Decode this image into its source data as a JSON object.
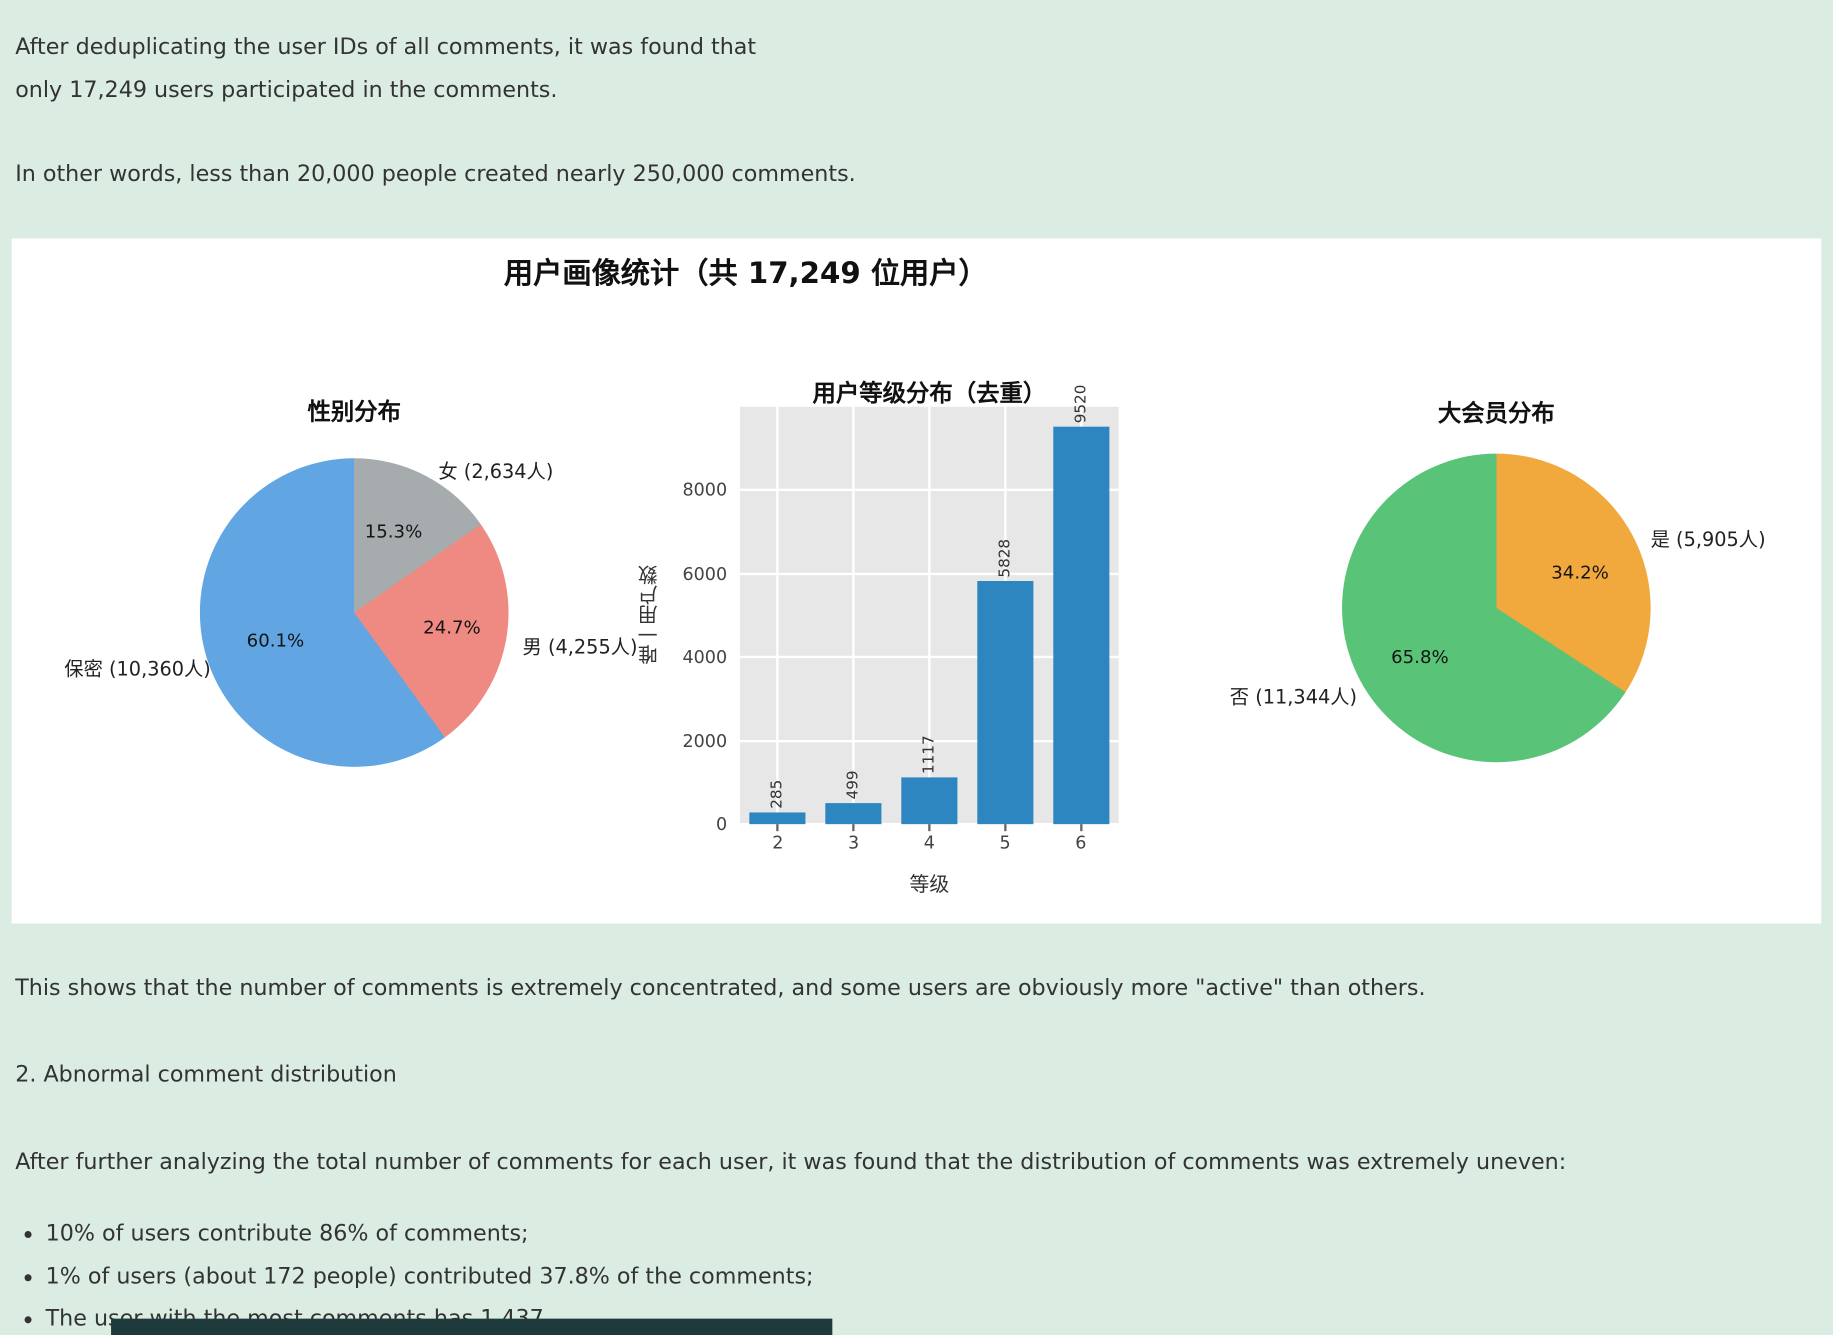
{
  "page": {
    "bg_color": "#dbece3",
    "panel_bg": "#ffffff",
    "text_color": "#333333",
    "partial_bar_color": "#1e3a3d"
  },
  "intro": {
    "p1_line1": "After deduplicating the user IDs of all comments, it was found that",
    "p1_line2": "only 17,249 users participated in the comments.",
    "p2": "In other words, less than 20,000 people created nearly 250,000 comments."
  },
  "figure": {
    "title": "用户画像统计（共 17,249 位用户）"
  },
  "chart_data": [
    {
      "type": "pie",
      "title": "性别分布",
      "note": "slices listed clockwise from 12 o'clock",
      "slices": [
        {
          "label": "女 (2,634人)",
          "pct": 15.3,
          "pct_label": "15.3%",
          "color": "#a6abae"
        },
        {
          "label": "男 (4,255人)",
          "pct": 24.7,
          "pct_label": "24.7%",
          "color": "#ee8a82"
        },
        {
          "label": "保密 (10,360人)",
          "pct": 60.1,
          "pct_label": "60.1%",
          "color": "#61a5e3"
        }
      ]
    },
    {
      "type": "bar",
      "title": "用户等级分布（去重）",
      "xlabel": "等级",
      "ylabel": "唯一用户数",
      "categories": [
        "2",
        "3",
        "4",
        "5",
        "6"
      ],
      "values": [
        285,
        499,
        1117,
        5828,
        9520
      ],
      "yticks": [
        0,
        2000,
        4000,
        6000,
        8000
      ],
      "ymax": 10000,
      "bar_color": "#2e86c1",
      "plot_bg": "#e7e7e7",
      "grid_color": "#ffffff",
      "grid": "on",
      "legend": "none"
    },
    {
      "type": "pie",
      "title": "大会员分布",
      "note": "slices listed clockwise from 12 o'clock",
      "slices": [
        {
          "label": "是 (5,905人)",
          "pct": 34.2,
          "pct_label": "34.2%",
          "color": "#f1a83c"
        },
        {
          "label": "否 (11,344人)",
          "pct": 65.8,
          "pct_label": "65.8%",
          "color": "#59c377"
        }
      ]
    }
  ],
  "analysis": {
    "p1": "This shows that the number of comments is extremely concentrated, and some users are obviously more \"active\" than others.",
    "heading": "2. Abnormal comment distribution",
    "p2": "After further analyzing the total number of comments for each user, it was found that the distribution of comments was extremely uneven:",
    "bullets": [
      "10% of users contribute 86% of comments;",
      "1% of users (about 172 people) contributed 37.8% of the comments;",
      "The user with the most comments has 1,437."
    ]
  }
}
